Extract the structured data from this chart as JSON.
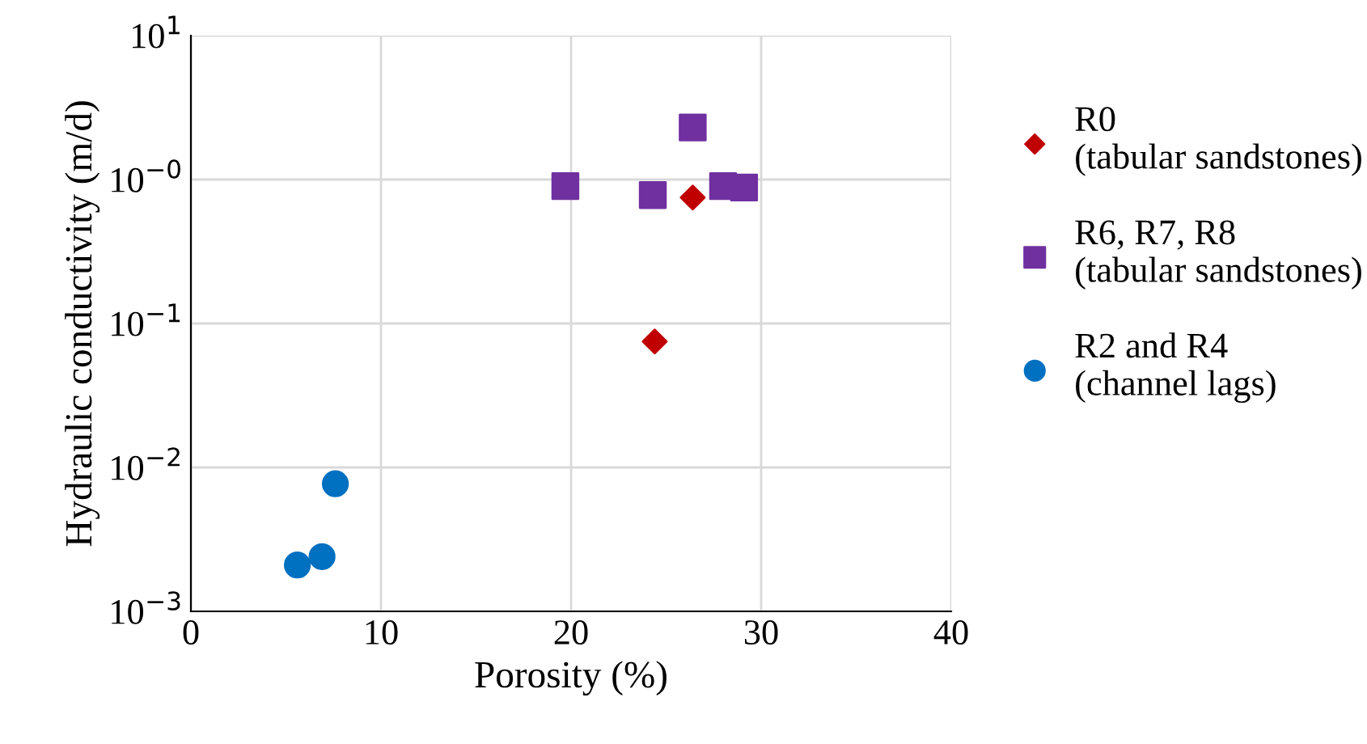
{
  "chart_data": {
    "type": "scatter",
    "xlabel": "Porosity (%)",
    "ylabel": "Hydraulic conductivity (m/d)",
    "series": [
      {
        "name": "R0\n(tabular sandstones)",
        "color": "#c00000",
        "marker": "diamond",
        "x": [
          24.4,
          26.4
        ],
        "values": [
          0.075,
          0.75
        ]
      },
      {
        "name": "R6, R7, R8\n(tabular sandstones)",
        "color": "#7030a0",
        "marker": "square",
        "x": [
          19.7,
          24.3,
          26.4,
          28.0,
          29.1
        ],
        "values": [
          0.9,
          0.78,
          2.3,
          0.9,
          0.88
        ]
      },
      {
        "name": "R2 and R4\n(channel lags)",
        "color": "#0070c0",
        "marker": "circle",
        "x": [
          5.6,
          6.9,
          7.6
        ],
        "values": [
          0.0021,
          0.0024,
          0.0077
        ]
      }
    ],
    "log": "y",
    "xlim": [
      0,
      40
    ],
    "xticks": [
      0,
      10,
      20,
      30,
      40
    ],
    "ylim": [
      0.001,
      10
    ],
    "yticks": [
      {
        "value": 0.001,
        "label": "10$^{−3}$"
      },
      {
        "value": 0.01,
        "label": "10$^{−2}$"
      },
      {
        "value": 0.1,
        "label": "10$^{−1}$"
      },
      {
        "value": 1,
        "label": "10$^{−0}$"
      },
      {
        "value": 10,
        "label": "10$^{1}$"
      }
    ],
    "grid": true,
    "legend": "right"
  }
}
